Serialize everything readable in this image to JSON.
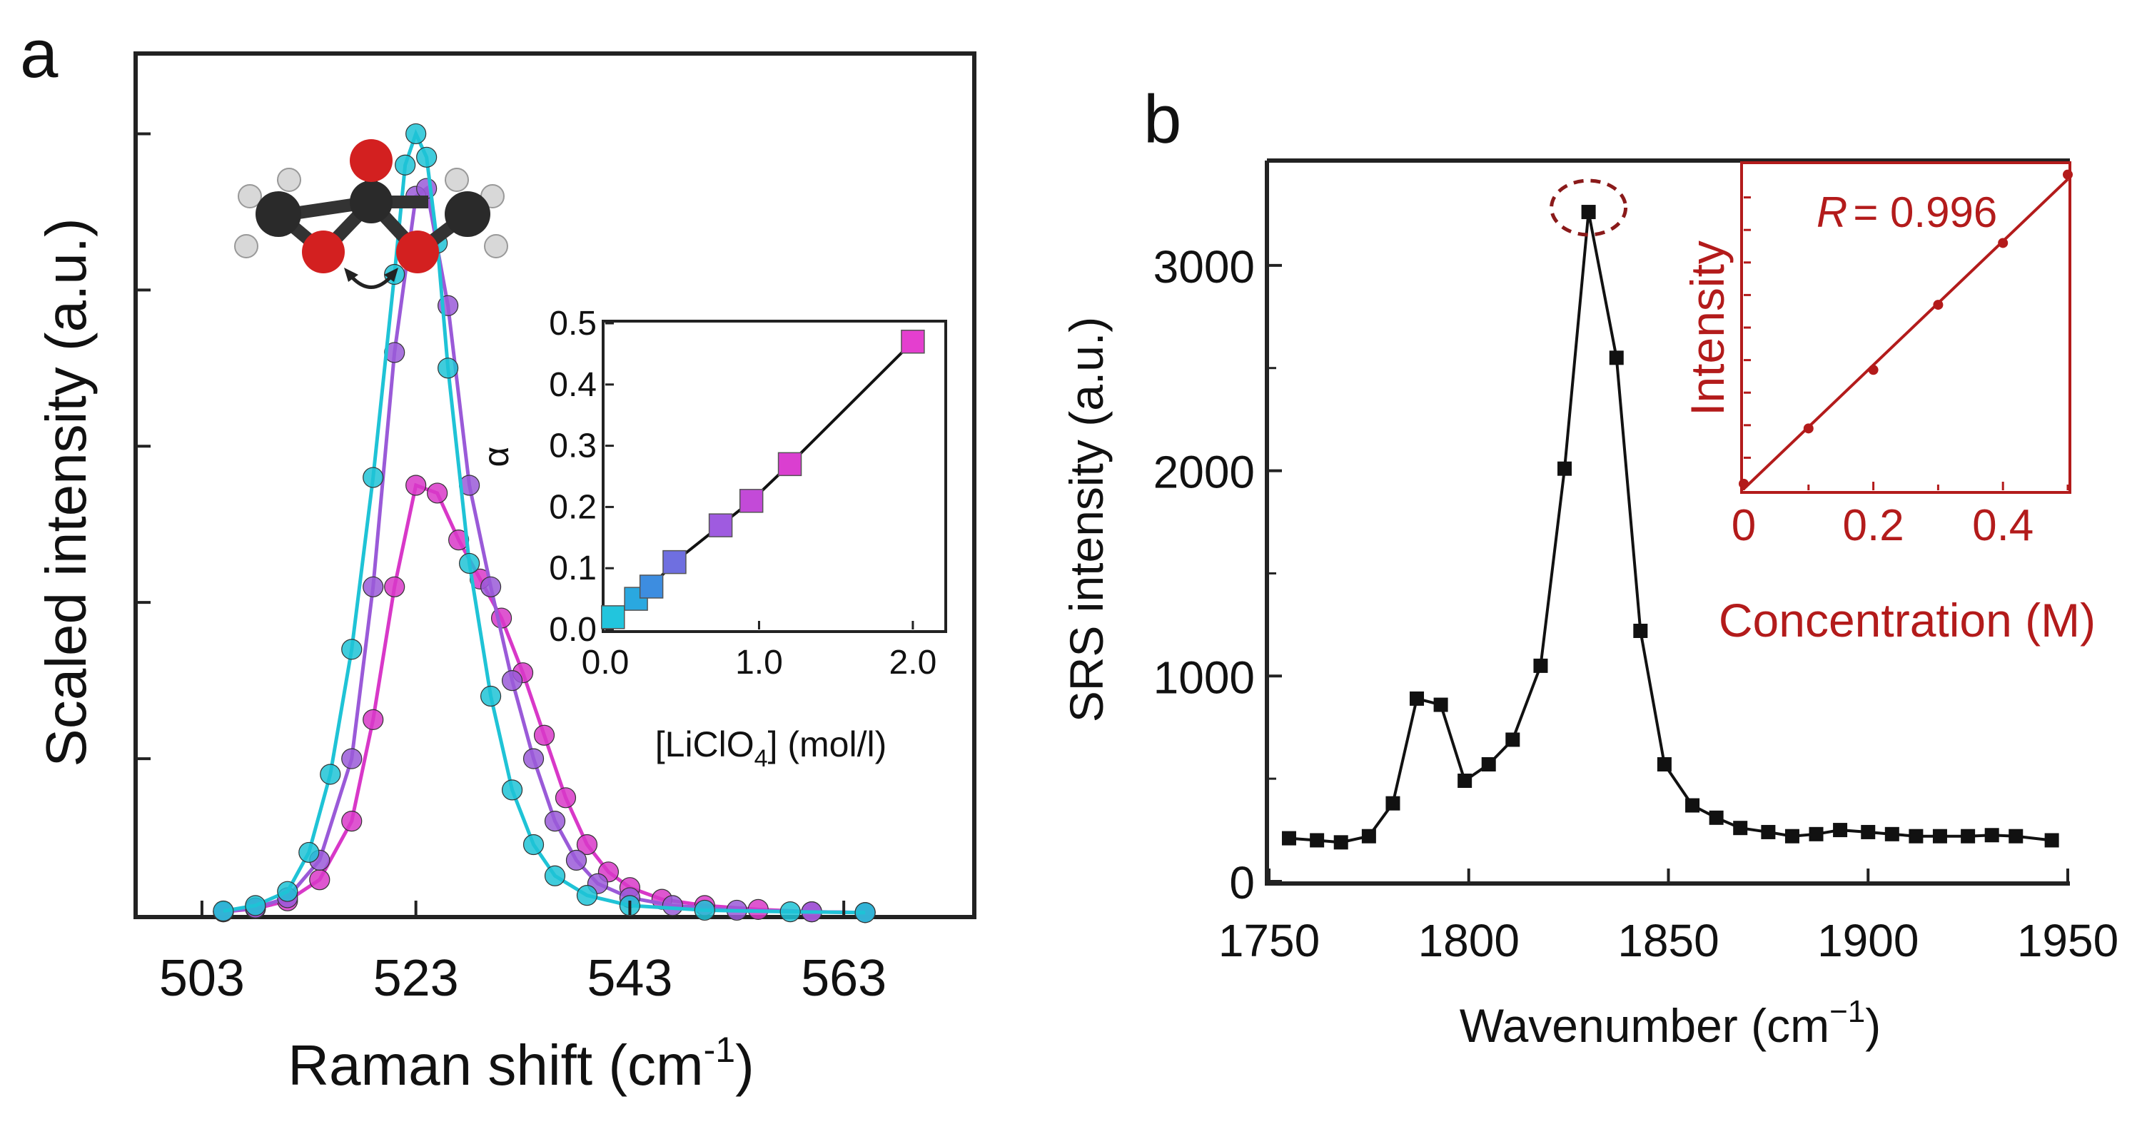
{
  "chart_data": [
    {
      "panel": "a",
      "type": "line",
      "title": "",
      "xlabel": "Raman shift (cm",
      "xlabel_sup": "-1",
      "xlabel_close": ")",
      "ylabel": "Scaled intensity (a.u.)",
      "xlim": [
        497,
        575
      ],
      "ylim": [
        0,
        1.1
      ],
      "xticks": [
        503,
        523,
        543,
        563
      ],
      "xtick_labels": [
        "503",
        "523",
        "543",
        "563"
      ],
      "grid": false,
      "series": [
        {
          "name": "magenta",
          "color": "#d838c8",
          "values": [
            [
              505,
              0.004
            ],
            [
              508,
              0.008
            ],
            [
              511,
              0.018
            ],
            [
              514,
              0.045
            ],
            [
              517,
              0.12
            ],
            [
              519,
              0.25
            ],
            [
              521,
              0.42
            ],
            [
              523,
              0.55
            ],
            [
              525,
              0.54
            ],
            [
              527,
              0.48
            ],
            [
              529,
              0.43
            ],
            [
              531,
              0.38
            ],
            [
              533,
              0.31
            ],
            [
              535,
              0.23
            ],
            [
              537,
              0.15
            ],
            [
              539,
              0.09
            ],
            [
              541,
              0.055
            ],
            [
              543,
              0.035
            ],
            [
              546,
              0.02
            ],
            [
              550,
              0.012
            ],
            [
              555,
              0.007
            ],
            [
              560,
              0.004
            ],
            [
              565,
              0.003
            ]
          ]
        },
        {
          "name": "violet",
          "color": "#9a5ad8",
          "values": [
            [
              505,
              0.004
            ],
            [
              508,
              0.009
            ],
            [
              511,
              0.022
            ],
            [
              514,
              0.07
            ],
            [
              517,
              0.2
            ],
            [
              519,
              0.42
            ],
            [
              521,
              0.72
            ],
            [
              523,
              0.92
            ],
            [
              524,
              0.93
            ],
            [
              526,
              0.78
            ],
            [
              528,
              0.55
            ],
            [
              530,
              0.42
            ],
            [
              532,
              0.3
            ],
            [
              534,
              0.2
            ],
            [
              536,
              0.12
            ],
            [
              538,
              0.07
            ],
            [
              540,
              0.04
            ],
            [
              543,
              0.022
            ],
            [
              547,
              0.012
            ],
            [
              553,
              0.006
            ],
            [
              560,
              0.004
            ],
            [
              565,
              0.003
            ]
          ]
        },
        {
          "name": "cyan",
          "color": "#1fc3d6",
          "values": [
            [
              505,
              0.005
            ],
            [
              508,
              0.012
            ],
            [
              511,
              0.03
            ],
            [
              513,
              0.08
            ],
            [
              515,
              0.18
            ],
            [
              517,
              0.34
            ],
            [
              519,
              0.56
            ],
            [
              521,
              0.82
            ],
            [
              522,
              0.96
            ],
            [
              523,
              1.0
            ],
            [
              524,
              0.97
            ],
            [
              525,
              0.86
            ],
            [
              526,
              0.7
            ],
            [
              528,
              0.45
            ],
            [
              530,
              0.28
            ],
            [
              532,
              0.16
            ],
            [
              534,
              0.09
            ],
            [
              536,
              0.05
            ],
            [
              539,
              0.025
            ],
            [
              543,
              0.012
            ],
            [
              550,
              0.006
            ],
            [
              558,
              0.004
            ],
            [
              565,
              0.003
            ]
          ]
        }
      ],
      "annotation": "dimethyl carbonate molecule (ball-and-stick) with curved double arrow",
      "inset": {
        "type": "line",
        "xlabel": "[LiClO",
        "xlabel_sub": "4",
        "xlabel_close": "] (mol/l)",
        "ylabel": "α",
        "xlim": [
          0,
          2.2
        ],
        "ylim": [
          0,
          0.5
        ],
        "xticks": [
          0.0,
          1.0,
          2.0
        ],
        "xtick_labels": [
          "0.0",
          "1.0",
          "2.0"
        ],
        "yticks": [
          0.0,
          0.1,
          0.2,
          0.3,
          0.4,
          0.5
        ],
        "ytick_labels": [
          "0.0",
          "0.1",
          "0.2",
          "0.3",
          "0.4",
          "0.5"
        ],
        "x": [
          0.05,
          0.2,
          0.3,
          0.45,
          0.75,
          0.95,
          1.2,
          2.0
        ],
        "y": [
          0.02,
          0.05,
          0.07,
          0.11,
          0.17,
          0.21,
          0.27,
          0.47
        ],
        "colors": [
          "#22c5dd",
          "#2aa8e0",
          "#3d8de0",
          "#6f6fe0",
          "#9f5be0",
          "#c34ad8",
          "#da3fd0",
          "#e43fcf"
        ]
      }
    },
    {
      "panel": "b",
      "type": "line",
      "title": "",
      "xlabel": "Wavenumber (cm",
      "xlabel_sup": "−1",
      "xlabel_close": ")",
      "ylabel": "SRS intensity (a.u.)",
      "xlim": [
        1750,
        1950
      ],
      "ylim": [
        0,
        3500
      ],
      "xticks": [
        1750,
        1800,
        1850,
        1900,
        1950
      ],
      "xtick_labels": [
        "1750",
        "1800",
        "1850",
        "1900",
        "1950"
      ],
      "yticks": [
        0,
        1000,
        2000,
        3000
      ],
      "ytick_labels": [
        "0",
        "1000",
        "2000",
        "3000"
      ],
      "grid": false,
      "series": [
        {
          "name": "SRS",
          "color": "#111111",
          "x": [
            1755,
            1762,
            1768,
            1775,
            1781,
            1787,
            1793,
            1799,
            1805,
            1811,
            1818,
            1824,
            1830,
            1837,
            1843,
            1849,
            1856,
            1862,
            1868,
            1875,
            1881,
            1887,
            1893,
            1900,
            1906,
            1912,
            1918,
            1925,
            1931,
            1937,
            1946
          ],
          "y": [
            210,
            200,
            190,
            220,
            380,
            890,
            860,
            490,
            570,
            690,
            1050,
            2010,
            3260,
            2550,
            1220,
            570,
            370,
            310,
            260,
            240,
            220,
            230,
            250,
            240,
            230,
            220,
            220,
            220,
            225,
            220,
            200
          ]
        }
      ],
      "highlight": {
        "x": 1830,
        "y": 3260,
        "style": "dashed circle"
      },
      "inset": {
        "type": "line",
        "xlabel": "Concentration (M)",
        "ylabel": "Intensity",
        "annotation_label": "R",
        "annotation_value": "= 0.996",
        "xlim": [
          0,
          0.5
        ],
        "ylim": [
          0,
          1
        ],
        "xticks": [
          0,
          0.2,
          0.4
        ],
        "xtick_labels": [
          "0",
          "0.2",
          "0.4"
        ],
        "x": [
          0,
          0.1,
          0.2,
          0.3,
          0.4,
          0.5
        ],
        "y": [
          0.02,
          0.19,
          0.37,
          0.57,
          0.76,
          0.97
        ],
        "color": "#b31b1b"
      }
    }
  ],
  "panel_labels": {
    "a": "a",
    "b": "b"
  }
}
